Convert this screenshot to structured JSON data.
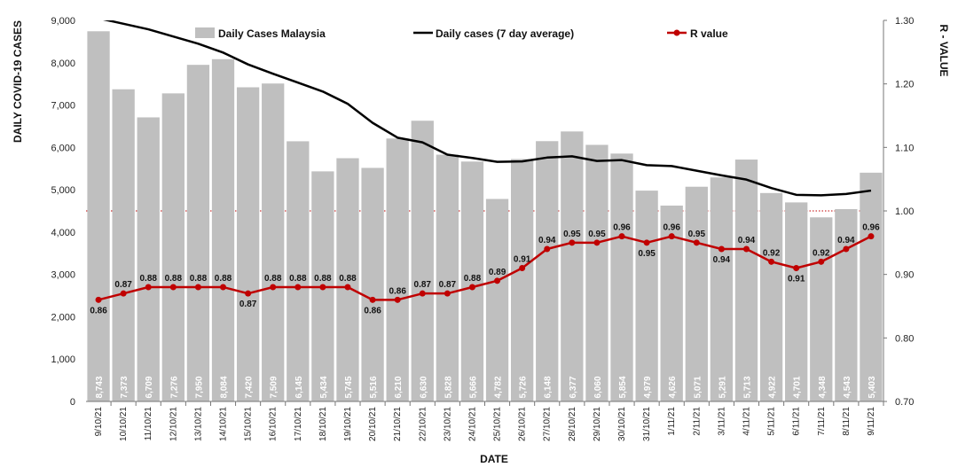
{
  "chart_data": {
    "type": "bar",
    "categories": [
      "9/10/21",
      "10/10/21",
      "11/10/21",
      "12/10/21",
      "13/10/21",
      "14/10/21",
      "15/10/21",
      "16/10/21",
      "17/10/21",
      "18/10/21",
      "19/10/21",
      "20/10/21",
      "21/10/21",
      "22/10/21",
      "23/10/21",
      "24/10/21",
      "25/10/21",
      "26/10/21",
      "27/10/21",
      "28/10/21",
      "29/10/21",
      "30/10/21",
      "31/10/21",
      "1/11/21",
      "2/11/21",
      "3/11/21",
      "4/11/21",
      "5/11/21",
      "6/11/21",
      "7/11/21",
      "8/11/21",
      "9/11/21"
    ],
    "series": [
      {
        "name": "Daily Cases Malaysia",
        "kind": "bar",
        "axis": "left",
        "color": "#bfbfbf",
        "values": [
          8743,
          7373,
          6709,
          7276,
          7950,
          8084,
          7420,
          7509,
          6145,
          5434,
          5745,
          5516,
          6210,
          6630,
          5828,
          5666,
          4782,
          5726,
          6148,
          6377,
          6060,
          5854,
          4979,
          4626,
          5071,
          5291,
          5713,
          4922,
          4701,
          4348,
          4543,
          5403
        ],
        "labels": [
          "8,743",
          "7,373",
          "6,709",
          "7,276",
          "7,950",
          "8,084",
          "7,420",
          "7,509",
          "6,145",
          "5,434",
          "5,745",
          "5,516",
          "6,210",
          "6,630",
          "5,828",
          "5,666",
          "4,782",
          "5,726",
          "6,148",
          "6,377",
          "6,060",
          "5,854",
          "4,979",
          "4,626",
          "5,071",
          "5,291",
          "5,713",
          "4,922",
          "4,701",
          "4,348",
          "4,543",
          "5,403"
        ]
      },
      {
        "name": "Daily cases (7 day average)",
        "kind": "line",
        "axis": "left",
        "color": "#000000",
        "values": [
          9050,
          8920,
          8790,
          8620,
          8450,
          8240,
          7960,
          7740,
          7530,
          7320,
          7030,
          6580,
          6230,
          6120,
          5830,
          5750,
          5660,
          5670,
          5760,
          5790,
          5680,
          5700,
          5580,
          5560,
          5450,
          5340,
          5240,
          5040,
          4880,
          4870,
          4900,
          4980
        ]
      },
      {
        "name": "R value",
        "kind": "line-markers",
        "axis": "right",
        "color": "#c00000",
        "values": [
          0.86,
          0.87,
          0.88,
          0.88,
          0.88,
          0.88,
          0.87,
          0.88,
          0.88,
          0.88,
          0.88,
          0.86,
          0.86,
          0.87,
          0.87,
          0.88,
          0.89,
          0.91,
          0.94,
          0.95,
          0.95,
          0.96,
          0.95,
          0.96,
          0.95,
          0.94,
          0.94,
          0.92,
          0.91,
          0.92,
          0.94,
          0.96
        ],
        "labels": [
          "0.86",
          "0.87",
          "0.88",
          "0.88",
          "0.88",
          "0.88",
          "0.87",
          "0.88",
          "0.88",
          "0.88",
          "0.88",
          "0.86",
          "0.86",
          "0.87",
          "0.87",
          "0.88",
          "0.89",
          "0.91",
          "0.94",
          "0.95",
          "0.95",
          "0.96",
          "0.95",
          "0.96",
          "0.95",
          "0.94",
          "0.94",
          "0.92",
          "0.91",
          "0.92",
          "0.94",
          "0.96"
        ]
      }
    ],
    "y_left": {
      "label": "DAILY COVID-19 CASES",
      "ylim": [
        0,
        9000
      ],
      "ticks": [
        0,
        1000,
        2000,
        3000,
        4000,
        5000,
        6000,
        7000,
        8000,
        9000
      ],
      "tick_labels": [
        "0",
        "1,000",
        "2,000",
        "3,000",
        "4,000",
        "5,000",
        "6,000",
        "7,000",
        "8,000",
        "9,000"
      ]
    },
    "y_right": {
      "label": "R - VALUE",
      "ylim": [
        0.7,
        1.3
      ],
      "ticks": [
        0.7,
        0.8,
        0.9,
        1.0,
        1.1,
        1.2,
        1.3
      ],
      "tick_labels": [
        "0.70",
        "0.80",
        "0.90",
        "1.00",
        "1.10",
        "1.20",
        "1.30"
      ]
    },
    "reference_line": {
      "axis": "right",
      "value": 1.0,
      "style": "dotted",
      "color": "#c00000"
    },
    "xlabel": "DATE",
    "grid": false,
    "legend_position": "top"
  }
}
